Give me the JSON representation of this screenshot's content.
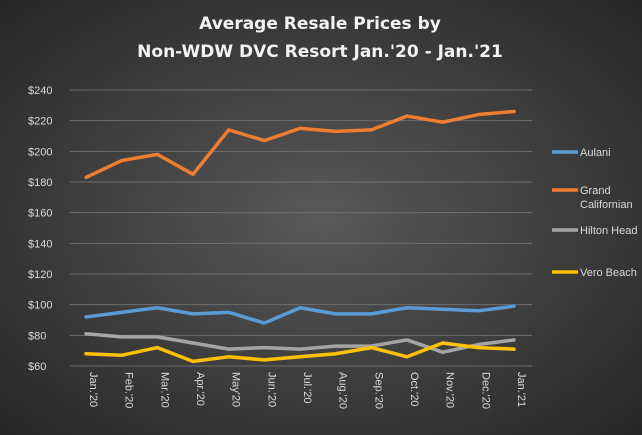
{
  "chart_data": {
    "type": "line",
    "title": [
      "Average Resale Prices by",
      "Non-WDW  DVC Resort Jan.'20  - Jan.'21"
    ],
    "xlabel": "",
    "ylabel": "",
    "categories": [
      "Jan.'20",
      "Feb.'20",
      "Mar.'20",
      "Apr.'20",
      "May'20",
      "Jun.'20",
      "Jul.'20",
      "Aug.'20",
      "Sep.'20",
      "Oct.'20",
      "Nov.'20",
      "Dec.'20",
      "Jan.'21"
    ],
    "ylim": [
      60,
      240
    ],
    "yticks": [
      "$60",
      "$80",
      "$100",
      "$120",
      "$140",
      "$160",
      "$180",
      "$200",
      "$220",
      "$240"
    ],
    "ytick_values": [
      60,
      80,
      100,
      120,
      140,
      160,
      180,
      200,
      220,
      240
    ],
    "grid": true,
    "legend_position": "right",
    "series": [
      {
        "name": "Aulani",
        "legend": [
          "Aulani"
        ],
        "color": "#5b9bd5",
        "values": [
          92,
          95,
          98,
          94,
          95,
          88,
          98,
          94,
          94,
          98,
          97,
          96,
          99
        ]
      },
      {
        "name": "Grand Californian",
        "legend": [
          "Grand",
          "Californian"
        ],
        "color": "#ed7d31",
        "values": [
          183,
          194,
          198,
          185,
          214,
          207,
          215,
          213,
          214,
          223,
          219,
          224,
          226
        ]
      },
      {
        "name": "Hilton Head",
        "legend": [
          "Hilton Head"
        ],
        "color": "#a5a5a5",
        "values": [
          81,
          79,
          79,
          75,
          71,
          72,
          71,
          73,
          73,
          77,
          69,
          74,
          77
        ]
      },
      {
        "name": "Vero Beach",
        "legend": [
          "Vero Beach"
        ],
        "color": "#ffc000",
        "values": [
          68,
          67,
          72,
          63,
          66,
          64,
          66,
          68,
          72,
          66,
          75,
          72,
          71
        ]
      }
    ]
  }
}
